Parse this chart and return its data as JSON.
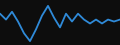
{
  "x": [
    0,
    1,
    2,
    3,
    4,
    5,
    6,
    7,
    8,
    9,
    10,
    11,
    12,
    13,
    14,
    15,
    16,
    17,
    18,
    19,
    20
  ],
  "y": [
    7.5,
    6.0,
    8.0,
    5.5,
    2.5,
    0.5,
    3.5,
    7.0,
    9.5,
    6.5,
    4.0,
    7.5,
    5.5,
    7.5,
    6.0,
    5.0,
    6.0,
    5.0,
    6.0,
    5.5,
    6.0
  ],
  "line_color": "#2f8ad8",
  "line_width": 1.3,
  "bg_color": "#0d0d0d"
}
